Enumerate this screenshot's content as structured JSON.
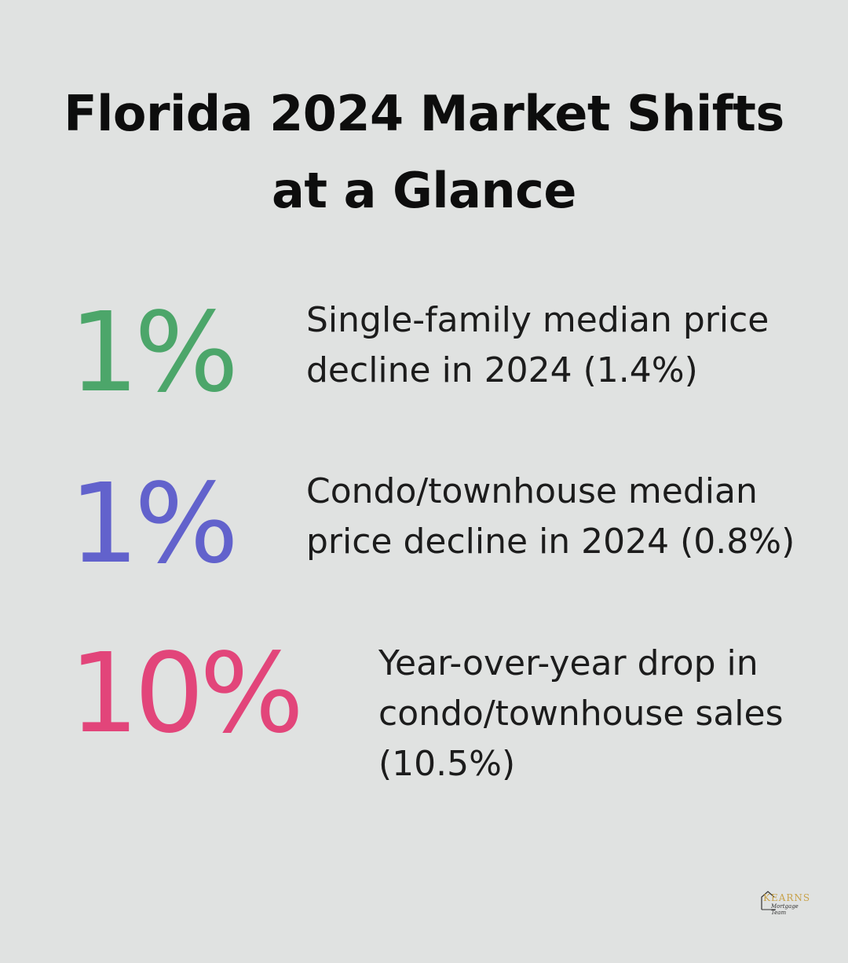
{
  "title_line1": "Florida 2024 Market Shifts",
  "title_line2": "at a Glance",
  "stats": [
    {
      "value": "1%",
      "color": "#4ca66a",
      "label": "Single-family median price decline in 2024 (1.4%)"
    },
    {
      "value": "1%",
      "color": "#6262cc",
      "label": "Condo/townhouse median price decline in 2024 (0.8%)"
    },
    {
      "value": "10%",
      "color": "#e2457a",
      "label": "Year-over-year drop in condo/townhouse sales (10.5%)"
    }
  ],
  "logo": {
    "name": "KEARNS",
    "tagline": "Mortgage Team",
    "accent": "#c8a24a"
  }
}
